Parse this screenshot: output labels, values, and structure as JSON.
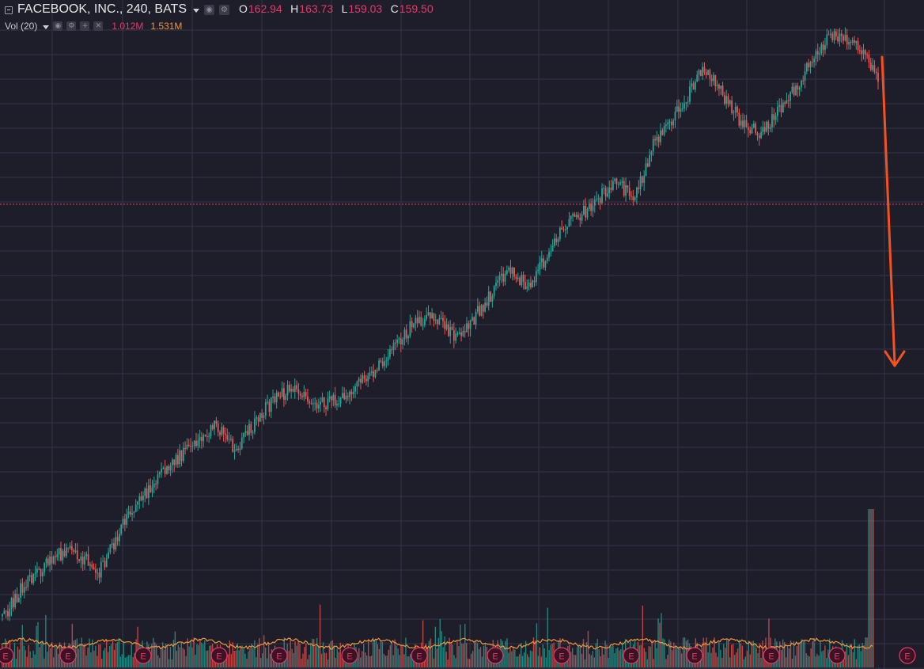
{
  "legend": {
    "symbol": "FACEBOOK, INC., 240, BATS",
    "open_key": "O",
    "open": "162.94",
    "high_key": "H",
    "high": "163.73",
    "low_key": "L",
    "low": "159.03",
    "close_key": "C",
    "close": "159.50"
  },
  "volume_legend": {
    "label": "Vol (20)",
    "value": "1.012M",
    "ma_value": "1.531M"
  },
  "earnings_marker_label": "E",
  "colors": {
    "background": "#1e1e2a",
    "grid": "#34344a",
    "up": "#26a69a",
    "down": "#ef5350",
    "volume_ma": "#f0953a",
    "annotation_arrow": "#f4511e",
    "price_line": "#e8386a"
  },
  "chart_data": {
    "type": "candlestick",
    "interval": "240",
    "last_ohlc": {
      "open": 162.94,
      "high": 163.73,
      "low": 159.03,
      "close": 159.5
    },
    "price_path": [
      [
        0,
        0.0
      ],
      [
        2,
        0.05
      ],
      [
        5,
        0.1
      ],
      [
        7,
        0.12
      ],
      [
        10,
        0.08
      ],
      [
        13,
        0.18
      ],
      [
        15,
        0.22
      ],
      [
        17,
        0.26
      ],
      [
        20,
        0.3
      ],
      [
        22,
        0.33
      ],
      [
        24,
        0.29
      ],
      [
        27,
        0.36
      ],
      [
        30,
        0.4
      ],
      [
        32,
        0.36
      ],
      [
        35,
        0.38
      ],
      [
        38,
        0.42
      ],
      [
        40,
        0.46
      ],
      [
        42,
        0.5
      ],
      [
        44,
        0.52
      ],
      [
        47,
        0.48
      ],
      [
        50,
        0.55
      ],
      [
        52,
        0.6
      ],
      [
        54,
        0.57
      ],
      [
        56,
        0.62
      ],
      [
        58,
        0.68
      ],
      [
        60,
        0.7
      ],
      [
        63,
        0.75
      ],
      [
        65,
        0.72
      ],
      [
        67,
        0.82
      ],
      [
        70,
        0.88
      ],
      [
        72,
        0.95
      ],
      [
        74,
        0.9
      ],
      [
        76,
        0.85
      ],
      [
        78,
        0.83
      ],
      [
        81,
        0.9
      ],
      [
        83,
        0.95
      ],
      [
        85,
        1.0
      ],
      [
        88,
        0.98
      ],
      [
        90,
        0.93
      ]
    ],
    "volume_spike_at": 88,
    "price_line_value": 159.5,
    "earnings_count": 14,
    "annotation": "downward-arrow"
  }
}
